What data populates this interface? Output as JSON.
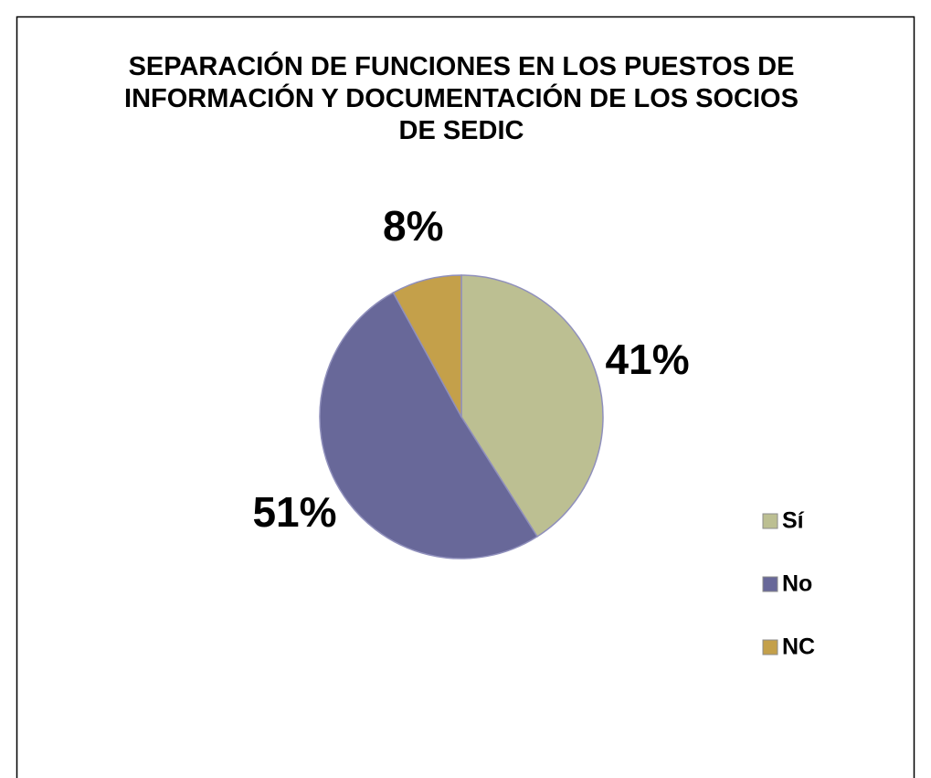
{
  "chart_data": {
    "type": "pie",
    "title": "SEPARACIÓN DE FUNCIONES EN LOS PUESTOS DE INFORMACIÓN Y DOCUMENTACIÓN DE LOS SOCIOS DE SEDIC",
    "categories": [
      "Sí",
      "No",
      "NC"
    ],
    "values": [
      41,
      51,
      8
    ],
    "value_labels": [
      "41%",
      "51%",
      "8%"
    ],
    "colors": [
      "#bcbf92",
      "#686899",
      "#c4a04a"
    ],
    "legend": "right"
  }
}
